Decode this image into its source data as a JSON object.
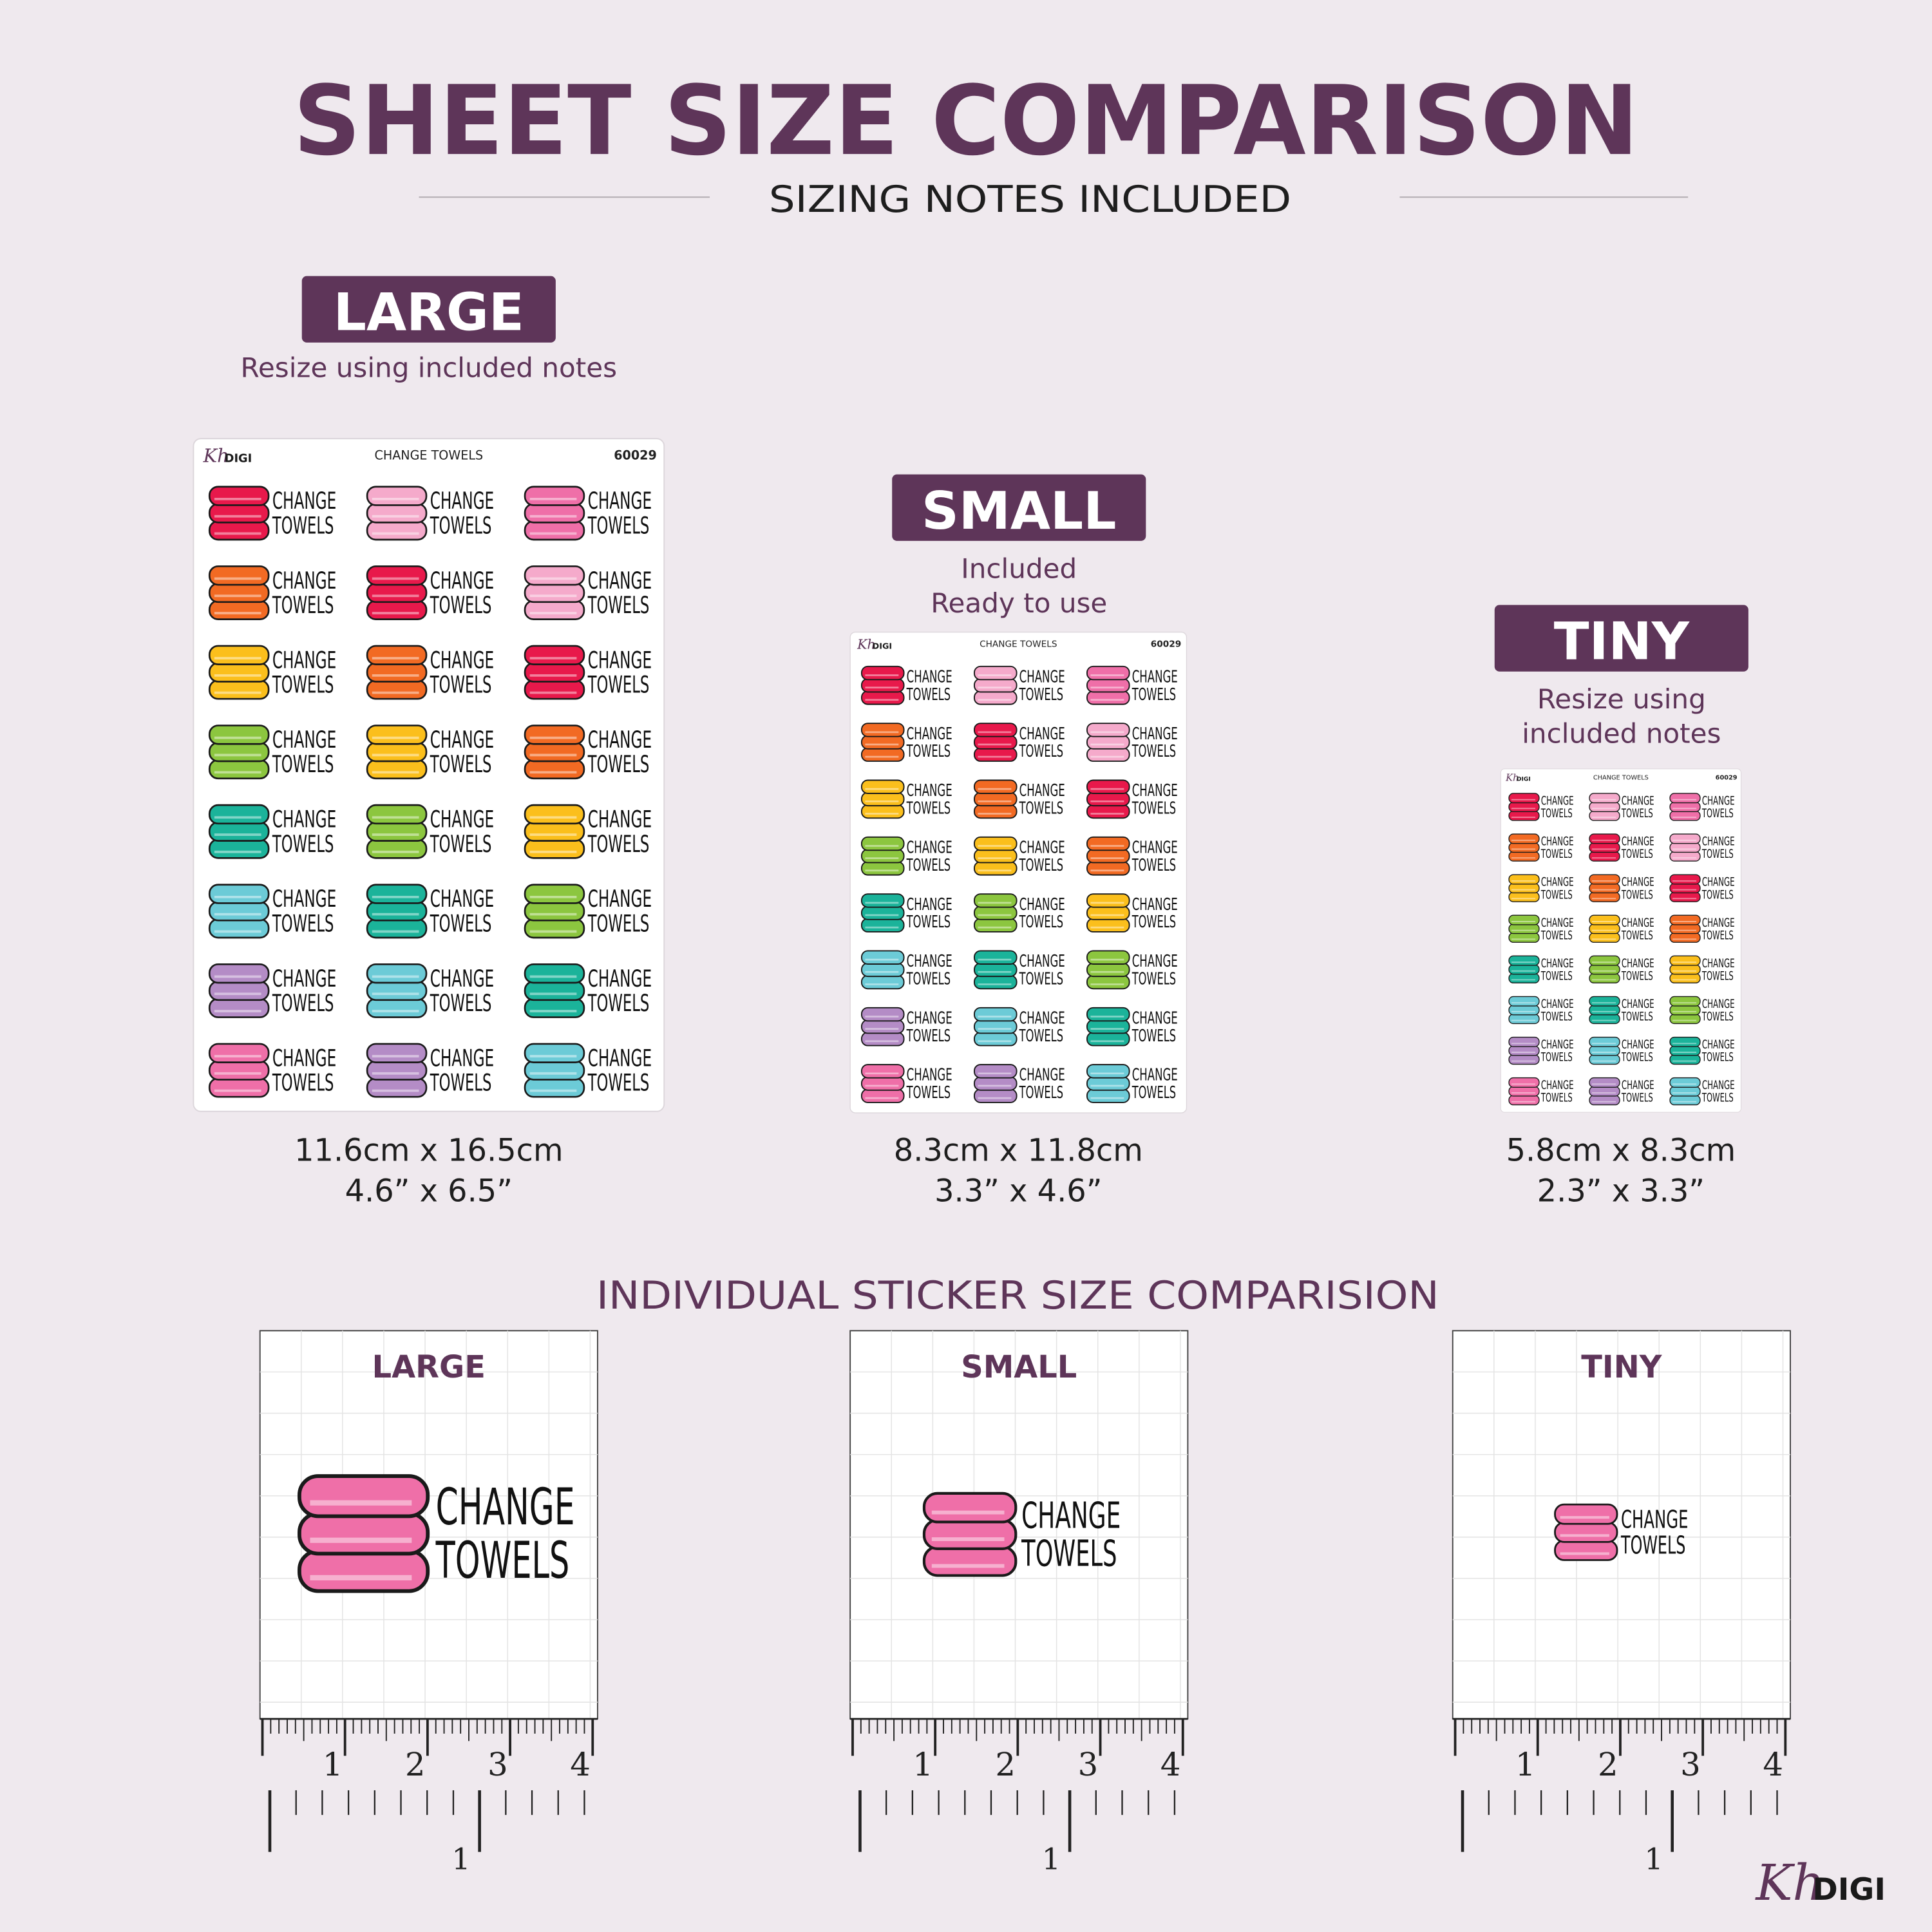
{
  "header": {
    "title": "SHEET SIZE COMPARISON",
    "subtitle": "SIZING NOTES INCLUDED"
  },
  "sheets": [
    {
      "size": "LARGE",
      "note": [
        "Resize using included notes"
      ],
      "dims": [
        "11.6cm x 16.5cm",
        "4.6” x 6.5”"
      ]
    },
    {
      "size": "SMALL",
      "note": [
        "Included",
        "Ready to use"
      ],
      "dims": [
        "8.3cm x 11.8cm",
        "3.3” x 4.6”"
      ]
    },
    {
      "size": "TINY",
      "note": [
        "Resize using",
        "included notes"
      ],
      "dims": [
        "5.8cm x 8.3cm",
        "2.3” x 3.3”"
      ]
    }
  ],
  "sheet_header": {
    "title": "CHANGE TOWELS",
    "code": "60029"
  },
  "sticker": {
    "lines": [
      "CHANGE",
      "TOWELS"
    ],
    "colors": [
      "#ef6fa8",
      "#f5aacb",
      "#e8194b",
      "#f26a23",
      "#fbbf1c",
      "#8cc63f",
      "#1bb39a",
      "#6ccbd7",
      "#b48cc6"
    ]
  },
  "comparison": {
    "title": "INDIVIDUAL STICKER SIZE COMPARISION",
    "panels": [
      "LARGE",
      "SMALL",
      "TINY"
    ],
    "cm_labels": [
      "1",
      "2",
      "3",
      "4"
    ],
    "inch_labels": [
      "1"
    ]
  },
  "brand": {
    "script": "Kh",
    "name": "DIGI"
  }
}
